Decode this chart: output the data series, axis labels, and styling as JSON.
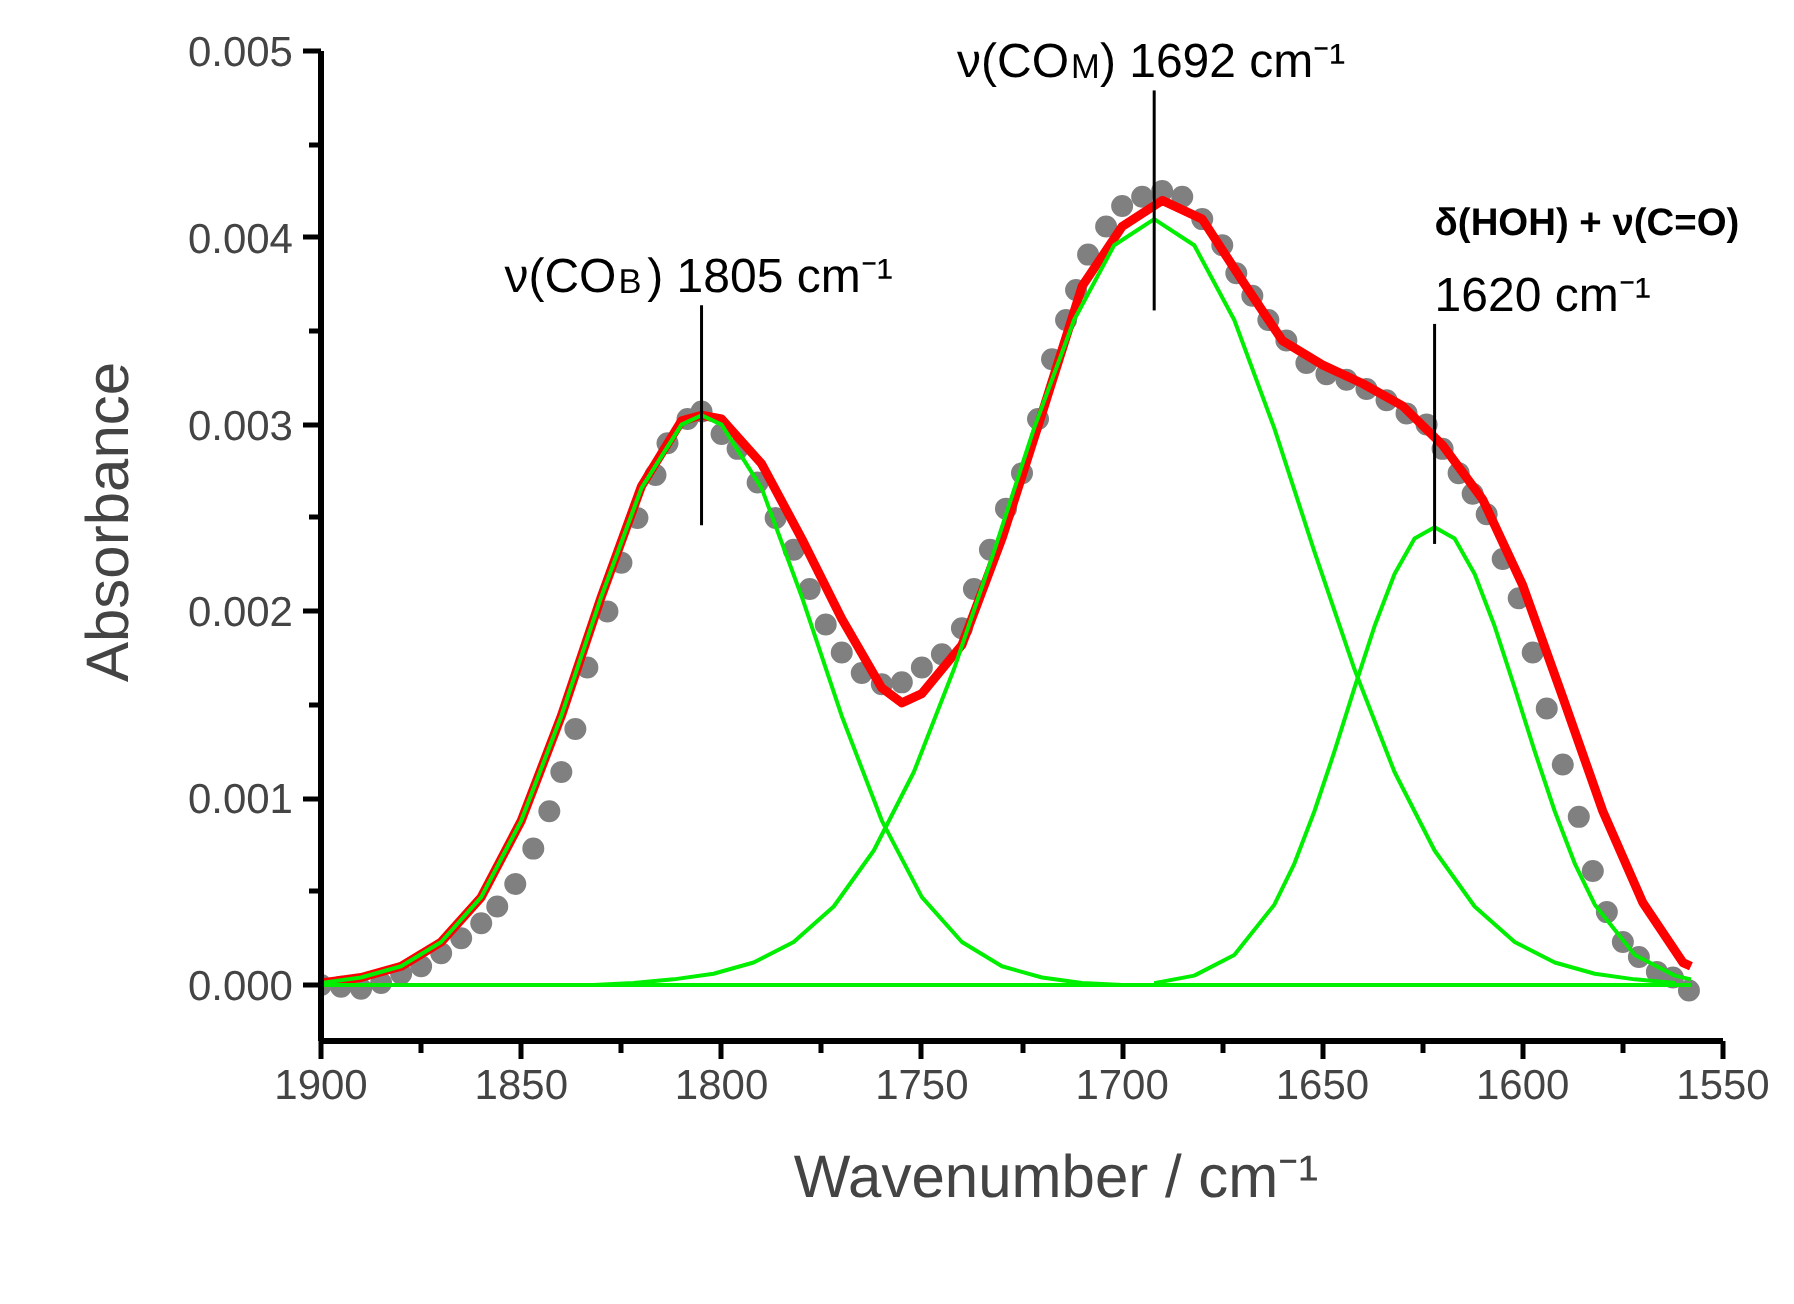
{
  "chart_data": {
    "type": "line",
    "xlabel": "Wavenumber / cm⁻¹",
    "ylabel": "Absorbance",
    "xlim": [
      1900,
      1550
    ],
    "ylim": [
      -0.0003,
      0.005
    ],
    "xticks": [
      1900,
      {
        "value": 1875,
        "label": null
      },
      1850,
      {
        "value": 1825,
        "label": null
      },
      1800,
      {
        "value": 1775,
        "label": null
      },
      1750,
      {
        "value": 1725,
        "label": null
      },
      1700,
      {
        "value": 1675,
        "label": null
      },
      1650,
      {
        "value": 1625,
        "label": null
      },
      1600,
      {
        "value": 1575,
        "label": null
      },
      1550
    ],
    "yticks": [
      {
        "value": 0,
        "label": "0.000"
      },
      {
        "value": 0.0005,
        "label": null
      },
      {
        "value": 0.001,
        "label": "0.001"
      },
      {
        "value": 0.0015,
        "label": null
      },
      {
        "value": 0.002,
        "label": "0.002"
      },
      {
        "value": 0.0025,
        "label": null
      },
      {
        "value": 0.003,
        "label": "0.003"
      },
      {
        "value": 0.0035,
        "label": null
      },
      {
        "value": 0.004,
        "label": "0.004"
      },
      {
        "value": 0.0045,
        "label": null
      },
      {
        "value": 0.005,
        "label": "0.005"
      }
    ],
    "grid": false,
    "annotations": [
      {
        "text": "ν(CO$_{B}$) 1805 cm⁻¹",
        "x": 1805,
        "y": 0.00305
      },
      {
        "text": "ν(CO$_{M}$) 1692 cm⁻¹",
        "x": 1692,
        "y": 0.0042
      },
      {
        "text": "δ(HOH) + ν(C=O)\n1620 cm⁻¹",
        "x": 1622,
        "y": 0.00295
      }
    ],
    "series": [
      {
        "type": "scatter",
        "marker": "circle",
        "color": "#808080",
        "x": [
          1900,
          1895,
          1890,
          1885,
          1880,
          1875,
          1870,
          1865,
          1860,
          1856,
          1851.5,
          1847,
          1843,
          1840,
          1836.5,
          1833.5,
          1828.5,
          1825,
          1821,
          1816.5,
          1813.5,
          1808.5,
          1805,
          1800,
          1796,
          1791,
          1786.5,
          1782,
          1778,
          1774,
          1770,
          1765,
          1760,
          1755,
          1750,
          1745,
          1740,
          1737,
          1733,
          1729,
          1725,
          1721,
          1717.5,
          1714,
          1711.5,
          1708.5,
          1704,
          1700,
          1695,
          1690,
          1685,
          1680,
          1675,
          1671.5,
          1667.5,
          1663.5,
          1659,
          1654,
          1649,
          1644,
          1639,
          1634,
          1629,
          1624,
          1620,
          1616,
          1612.5,
          1609,
          1605,
          1601,
          1597.5,
          1594,
          1590,
          1586,
          1582.5,
          1579,
          1575,
          1571,
          1566.5,
          1562.5,
          1558.5
        ],
        "values": [
          0,
          -1e-05,
          -2e-05,
          1e-05,
          6e-05,
          0.0001,
          0.00017,
          0.00025,
          0.00033,
          0.00042,
          0.00054,
          0.00073,
          0.00093,
          0.00114,
          0.00137,
          0.0017,
          0.002,
          0.00226,
          0.0025,
          0.00273,
          0.0029,
          0.00303,
          0.00307,
          0.00295,
          0.00287,
          0.00269,
          0.0025,
          0.00233,
          0.00212,
          0.00193,
          0.00178,
          0.00167,
          0.00161,
          0.00162,
          0.0017,
          0.00177,
          0.00191,
          0.00212,
          0.00233,
          0.00255,
          0.00274,
          0.00303,
          0.00335,
          0.00356,
          0.00372,
          0.00391,
          0.00406,
          0.00417,
          0.00422,
          0.00425,
          0.00422,
          0.0041,
          0.00396,
          0.00381,
          0.00369,
          0.00356,
          0.00345,
          0.00333,
          0.00327,
          0.00324,
          0.00319,
          0.00313,
          0.00306,
          0.003,
          0.00287,
          0.00274,
          0.00263,
          0.00252,
          0.00228,
          0.00207,
          0.00178,
          0.00148,
          0.00118,
          0.0009,
          0.00061,
          0.00039,
          0.00023,
          0.00015,
          7e-05,
          4e-05,
          -3e-05
        ]
      },
      {
        "type": "line",
        "color": "#ff0000",
        "x": [
          1900,
          1890,
          1880,
          1870,
          1860,
          1850,
          1840,
          1830,
          1820,
          1810,
          1805,
          1800,
          1790,
          1780,
          1770,
          1760,
          1755,
          1750,
          1740,
          1730,
          1720,
          1710,
          1700,
          1690,
          1680,
          1670,
          1660,
          1650,
          1640,
          1630,
          1620,
          1610,
          1600,
          1590,
          1580,
          1570,
          1560,
          1558
        ],
        "values": [
          1e-05,
          4e-05,
          0.0001,
          0.00023,
          0.00047,
          0.00088,
          0.00144,
          0.00208,
          0.00267,
          0.00302,
          0.00305,
          0.00303,
          0.00279,
          0.00239,
          0.00196,
          0.00159,
          0.00151,
          0.00156,
          0.00182,
          0.00239,
          0.00306,
          0.00374,
          0.00406,
          0.0042,
          0.0041,
          0.00377,
          0.00345,
          0.00332,
          0.00322,
          0.0031,
          0.00289,
          0.0026,
          0.00214,
          0.00154,
          0.00093,
          0.00044,
          0.00012,
          0.0001
        ]
      },
      {
        "type": "line",
        "color": "#00ee00",
        "x": [
          1900,
          1890,
          1880,
          1870,
          1860,
          1850,
          1840,
          1830,
          1820,
          1810,
          1805,
          1800,
          1790,
          1780,
          1770,
          1760,
          1750,
          1740,
          1730,
          1720,
          1710,
          1700
        ],
        "values": [
          1e-05,
          4e-05,
          0.0001,
          0.00023,
          0.00047,
          0.00088,
          0.00144,
          0.00208,
          0.00266,
          0.003,
          0.00305,
          0.003,
          0.00266,
          0.00208,
          0.00144,
          0.00088,
          0.00047,
          0.00023,
          0.0001,
          4e-05,
          1e-05,
          0
        ]
      },
      {
        "type": "line",
        "color": "#00ee00",
        "x": [
          1832,
          1822,
          1812,
          1802,
          1792,
          1782,
          1772,
          1762,
          1752,
          1742,
          1732,
          1722,
          1712,
          1702,
          1692,
          1682,
          1672,
          1662,
          1652,
          1642,
          1632,
          1622,
          1612,
          1602,
          1592,
          1582,
          1572,
          1562
        ],
        "values": [
          0,
          1e-05,
          3e-05,
          6e-05,
          0.00012,
          0.00023,
          0.00042,
          0.00072,
          0.00114,
          0.00169,
          0.00232,
          0.00298,
          0.00356,
          0.00396,
          0.0041,
          0.00396,
          0.00356,
          0.00298,
          0.00232,
          0.00169,
          0.00114,
          0.00072,
          0.00042,
          0.00023,
          0.00012,
          6e-05,
          3e-05,
          1e-05
        ]
      },
      {
        "type": "line",
        "color": "#00ee00",
        "x": [
          1692,
          1682,
          1672,
          1662,
          1657,
          1652,
          1647,
          1642,
          1637,
          1632,
          1627,
          1622,
          1617,
          1612,
          1607,
          1602,
          1597,
          1592,
          1587,
          1582,
          1572,
          1562,
          1558
        ],
        "values": [
          1e-05,
          5e-05,
          0.00016,
          0.00043,
          0.00065,
          0.00093,
          0.00125,
          0.00159,
          0.00192,
          0.0022,
          0.00239,
          0.00245,
          0.00239,
          0.0022,
          0.00192,
          0.00159,
          0.00125,
          0.00093,
          0.00065,
          0.00043,
          0.00016,
          5e-05,
          3e-05
        ]
      },
      {
        "type": "line",
        "color": "#00ee00",
        "x": [
          1900,
          1558
        ],
        "values": [
          0,
          0
        ]
      }
    ]
  }
}
